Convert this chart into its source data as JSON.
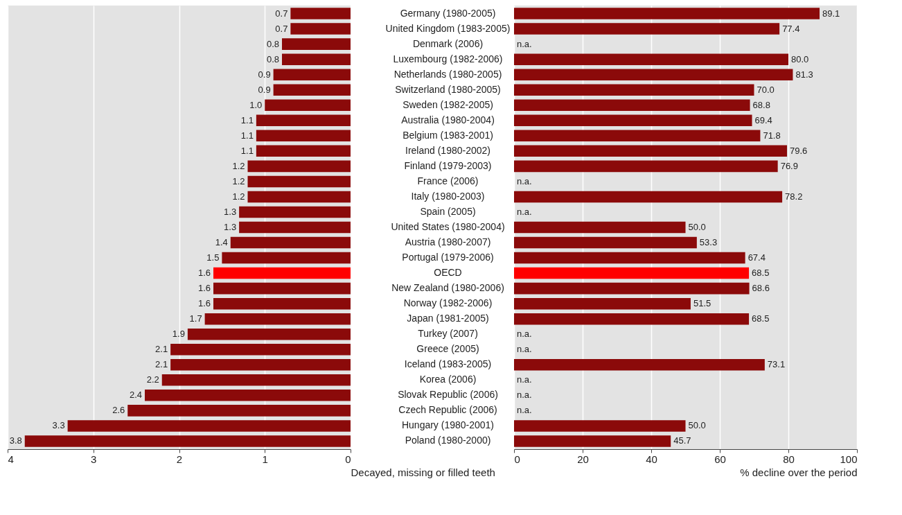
{
  "chart_data": [
    {
      "type": "bar",
      "orientation": "horizontal",
      "xlabel": "Decayed, missing or filled teeth",
      "categories": [
        "Germany (1980-2005)",
        "United Kingdom (1983-2005)",
        "Denmark (2006)",
        "Luxembourg (1982-2006)",
        "Netherlands (1980-2005)",
        "Switzerland (1980-2005)",
        "Sweden (1982-2005)",
        "Australia (1980-2004)",
        "Belgium (1983-2001)",
        "Ireland (1980-2002)",
        "Finland (1979-2003)",
        "France (2006)",
        "Italy (1980-2003)",
        "Spain (2005)",
        "United States (1980-2004)",
        "Austria (1980-2007)",
        "Portugal (1979-2006)",
        "OECD",
        "New Zealand (1980-2006)",
        "Norway (1982-2006)",
        "Japan (1981-2005)",
        "Turkey (2007)",
        "Greece (2005)",
        "Iceland (1983-2005)",
        "Korea (2006)",
        "Slovak Republic (2006)",
        "Czech Republic (2006)",
        "Hungary (1980-2001)",
        "Poland (1980-2000)"
      ],
      "values": [
        0.7,
        0.7,
        0.8,
        0.8,
        0.9,
        0.9,
        1.0,
        1.1,
        1.1,
        1.1,
        1.2,
        1.2,
        1.2,
        1.3,
        1.3,
        1.4,
        1.5,
        1.6,
        1.6,
        1.6,
        1.7,
        1.9,
        2.1,
        2.1,
        2.2,
        2.4,
        2.6,
        3.3,
        3.8
      ],
      "value_labels": [
        "0.7",
        "0.7",
        "0.8",
        "0.8",
        "0.9",
        "0.9",
        "1.0",
        "1.1",
        "1.1",
        "1.1",
        "1.2",
        "1.2",
        "1.2",
        "1.3",
        "1.3",
        "1.4",
        "1.5",
        "1.6",
        "1.6",
        "1.6",
        "1.7",
        "1.9",
        "2.1",
        "2.1",
        "2.2",
        "2.4",
        "2.6",
        "3.3",
        "3.8"
      ],
      "colors": [
        "#8b0a0a",
        "#8b0a0a",
        "#8b0a0a",
        "#8b0a0a",
        "#8b0a0a",
        "#8b0a0a",
        "#8b0a0a",
        "#8b0a0a",
        "#8b0a0a",
        "#8b0a0a",
        "#8b0a0a",
        "#8b0a0a",
        "#8b0a0a",
        "#8b0a0a",
        "#8b0a0a",
        "#8b0a0a",
        "#8b0a0a",
        "#ff0000",
        "#8b0a0a",
        "#8b0a0a",
        "#8b0a0a",
        "#8b0a0a",
        "#8b0a0a",
        "#8b0a0a",
        "#8b0a0a",
        "#8b0a0a",
        "#8b0a0a",
        "#8b0a0a",
        "#8b0a0a"
      ],
      "xlim": [
        4,
        0
      ],
      "xticks": [
        4,
        3,
        2,
        1,
        0
      ],
      "grid": "x"
    },
    {
      "type": "bar",
      "orientation": "horizontal",
      "xlabel": "% decline over the period",
      "categories": [
        "Germany (1980-2005)",
        "United Kingdom (1983-2005)",
        "Denmark (2006)",
        "Luxembourg (1982-2006)",
        "Netherlands (1980-2005)",
        "Switzerland (1980-2005)",
        "Sweden (1982-2005)",
        "Australia (1980-2004)",
        "Belgium (1983-2001)",
        "Ireland (1980-2002)",
        "Finland (1979-2003)",
        "France (2006)",
        "Italy (1980-2003)",
        "Spain (2005)",
        "United States (1980-2004)",
        "Austria (1980-2007)",
        "Portugal (1979-2006)",
        "OECD",
        "New Zealand (1980-2006)",
        "Norway (1982-2006)",
        "Japan (1981-2005)",
        "Turkey (2007)",
        "Greece (2005)",
        "Iceland (1983-2005)",
        "Korea (2006)",
        "Slovak Republic (2006)",
        "Czech Republic (2006)",
        "Hungary (1980-2001)",
        "Poland (1980-2000)"
      ],
      "values": [
        89.1,
        77.4,
        null,
        80.0,
        81.3,
        70.0,
        68.8,
        69.4,
        71.8,
        79.6,
        76.9,
        null,
        78.2,
        null,
        50.0,
        53.3,
        67.4,
        68.5,
        68.6,
        51.5,
        68.5,
        null,
        null,
        73.1,
        null,
        null,
        null,
        50.0,
        45.7
      ],
      "value_labels": [
        "89.1",
        "77.4",
        "n.a.",
        "80.0",
        "81.3",
        "70.0",
        "68.8",
        "69.4",
        "71.8",
        "79.6",
        "76.9",
        "n.a.",
        "78.2",
        "n.a.",
        "50.0",
        "53.3",
        "67.4",
        "68.5",
        "68.6",
        "51.5",
        "68.5",
        "n.a.",
        "n.a.",
        "73.1",
        "n.a.",
        "n.a.",
        "n.a.",
        "50.0",
        "45.7"
      ],
      "colors": [
        "#8b0a0a",
        "#8b0a0a",
        "#8b0a0a",
        "#8b0a0a",
        "#8b0a0a",
        "#8b0a0a",
        "#8b0a0a",
        "#8b0a0a",
        "#8b0a0a",
        "#8b0a0a",
        "#8b0a0a",
        "#8b0a0a",
        "#8b0a0a",
        "#8b0a0a",
        "#8b0a0a",
        "#8b0a0a",
        "#8b0a0a",
        "#ff0000",
        "#8b0a0a",
        "#8b0a0a",
        "#8b0a0a",
        "#8b0a0a",
        "#8b0a0a",
        "#8b0a0a",
        "#8b0a0a",
        "#8b0a0a",
        "#8b0a0a",
        "#8b0a0a",
        "#8b0a0a"
      ],
      "xlim": [
        0,
        100
      ],
      "xticks": [
        0,
        20,
        40,
        60,
        80,
        100
      ],
      "grid": "x",
      "tick_labels": "x"
    }
  ]
}
